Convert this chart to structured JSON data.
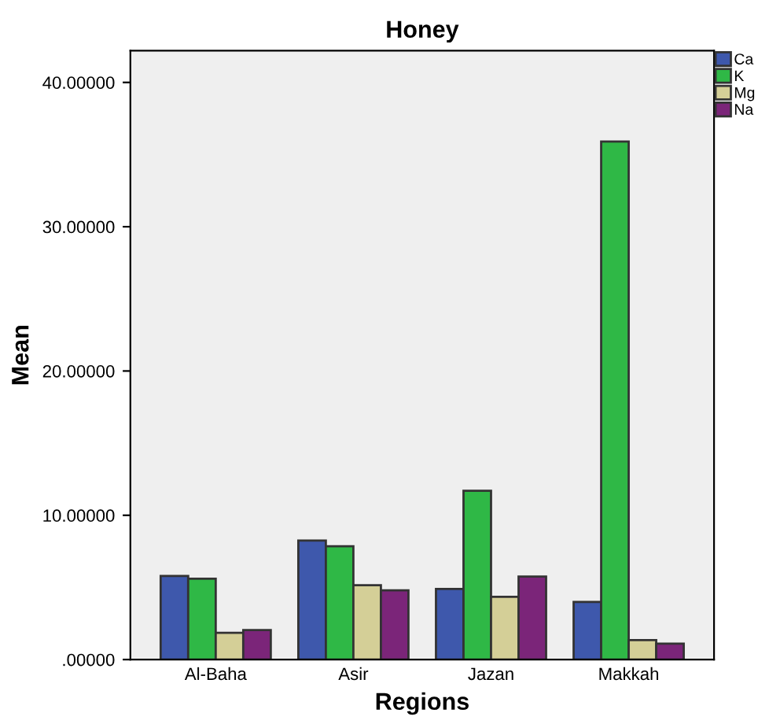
{
  "chart_data": {
    "type": "bar",
    "title": "Honey",
    "xlabel": "Regions",
    "ylabel": "Mean",
    "categories": [
      "Al-Baha",
      "Asir",
      "Jazan",
      "Makkah"
    ],
    "series": [
      {
        "name": "Ca",
        "color": "#3e58ac",
        "values": [
          5.8,
          8.25,
          4.9,
          4.0
        ]
      },
      {
        "name": "K",
        "color": "#2fb846",
        "values": [
          5.6,
          7.85,
          11.7,
          35.9
        ]
      },
      {
        "name": "Mg",
        "color": "#d4cf97",
        "values": [
          1.85,
          5.15,
          4.35,
          1.35
        ]
      },
      {
        "name": "Na",
        "color": "#7b2579",
        "values": [
          2.05,
          4.8,
          5.75,
          1.1
        ]
      }
    ],
    "ylim": [
      0,
      42.2
    ],
    "yticks": [
      {
        "value": 0,
        "label": ".00000"
      },
      {
        "value": 10,
        "label": "10.00000"
      },
      {
        "value": 20,
        "label": "20.00000"
      },
      {
        "value": 30,
        "label": "30.00000"
      },
      {
        "value": 40,
        "label": "40.00000"
      }
    ],
    "grid": false,
    "legend": "top right"
  }
}
